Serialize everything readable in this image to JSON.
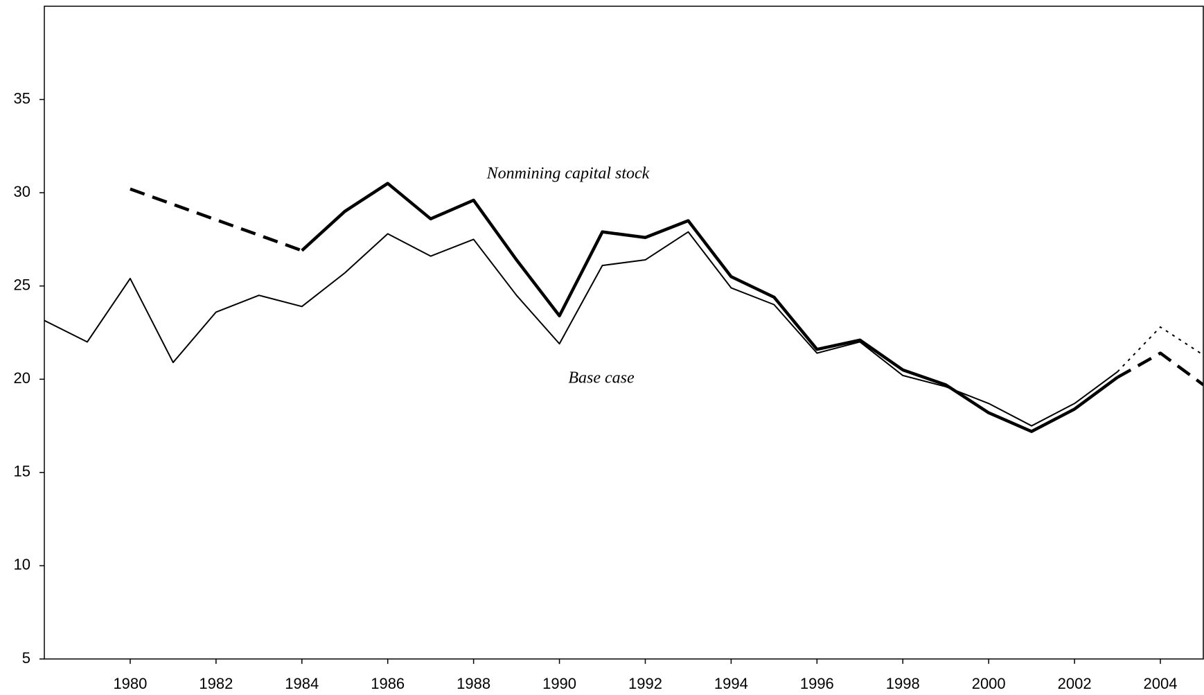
{
  "chart_data": {
    "type": "line",
    "xlim": [
      1978,
      2005
    ],
    "xticks": [
      1980,
      1982,
      1984,
      1986,
      1988,
      1990,
      1992,
      1994,
      1996,
      1998,
      2000,
      2002,
      2004
    ],
    "ylim": [
      5,
      40
    ],
    "yticks": [
      5,
      10,
      15,
      20,
      25,
      30,
      35
    ],
    "series": [
      {
        "name": "Base case",
        "color": "#000000",
        "weight": "thin",
        "style": "solid",
        "x": [
          1978,
          1979,
          1980,
          1981,
          1982,
          1983,
          1984,
          1985,
          1986,
          1987,
          1988,
          1989,
          1990,
          1991,
          1992,
          1993,
          1994,
          1995,
          1996,
          1997,
          1998,
          1999,
          2000,
          2001,
          2002,
          2003
        ],
        "values": [
          23.15,
          22.0,
          25.4,
          20.9,
          23.6,
          24.5,
          23.9,
          25.7,
          27.8,
          26.6,
          27.5,
          24.5,
          21.9,
          26.1,
          26.4,
          27.9,
          24.9,
          24.0,
          21.4,
          22.0,
          20.2,
          19.6,
          18.7,
          17.5,
          18.7,
          20.4
        ]
      },
      {
        "color": "#000000",
        "weight": "thin",
        "style": "dotted",
        "x": [
          2003,
          2004,
          2005
        ],
        "values": [
          20.4,
          22.8,
          21.3
        ]
      },
      {
        "name": "Nonmining capital stock",
        "color": "#000000",
        "weight": "thick",
        "style": "solid",
        "x": [
          1984,
          1985,
          1986,
          1987,
          1988,
          1989,
          1990,
          1991,
          1992,
          1993,
          1994,
          1995,
          1996,
          1997,
          1998,
          1999,
          2000,
          2001,
          2002,
          2003
        ],
        "values": [
          26.9,
          29.0,
          30.5,
          28.6,
          29.6,
          26.4,
          23.4,
          27.9,
          27.6,
          28.5,
          25.5,
          24.4,
          21.6,
          22.1,
          20.5,
          19.7,
          18.2,
          17.2,
          18.4,
          20.1
        ]
      },
      {
        "color": "#000000",
        "weight": "thick",
        "style": "dashed",
        "x": [
          1980,
          1984
        ],
        "values": [
          30.2,
          26.9
        ]
      },
      {
        "color": "#000000",
        "weight": "thick",
        "style": "dashed",
        "x": [
          2003,
          2004,
          2005
        ],
        "values": [
          20.1,
          21.4,
          19.7
        ]
      }
    ]
  }
}
